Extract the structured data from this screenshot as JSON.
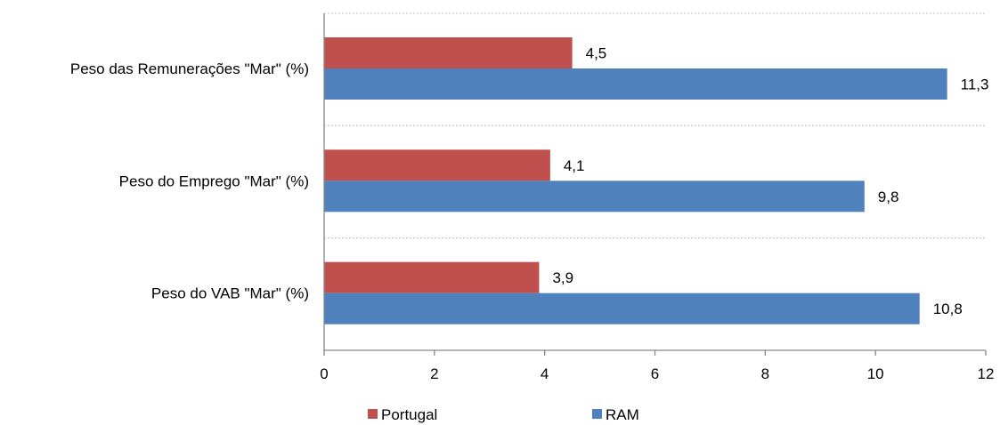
{
  "chart_data": {
    "type": "bar",
    "orientation": "horizontal",
    "categories": [
      "Peso das Remunerações \"Mar\" (%)",
      "Peso do Emprego \"Mar\" (%)",
      "Peso do VAB \"Mar\" (%)"
    ],
    "series": [
      {
        "name": "Portugal",
        "values": [
          4.5,
          4.1,
          3.9
        ],
        "labels": [
          "4,5",
          "4,1",
          "3,9"
        ],
        "color": "#c0504d"
      },
      {
        "name": "RAM",
        "values": [
          11.3,
          9.8,
          10.8
        ],
        "labels": [
          "11,3",
          "9,8",
          "10,8"
        ],
        "color": "#4f81bd"
      }
    ],
    "xlim": [
      0,
      12
    ],
    "xticks": [
      0,
      2,
      4,
      6,
      8,
      10,
      12
    ],
    "xtick_labels": [
      "0",
      "2",
      "4",
      "6",
      "8",
      "10",
      "12"
    ],
    "grid": "horizontal dotted separators between categories",
    "legend_position": "bottom",
    "gridline_color": "#bfbfbf",
    "axis_color": "#868686"
  }
}
